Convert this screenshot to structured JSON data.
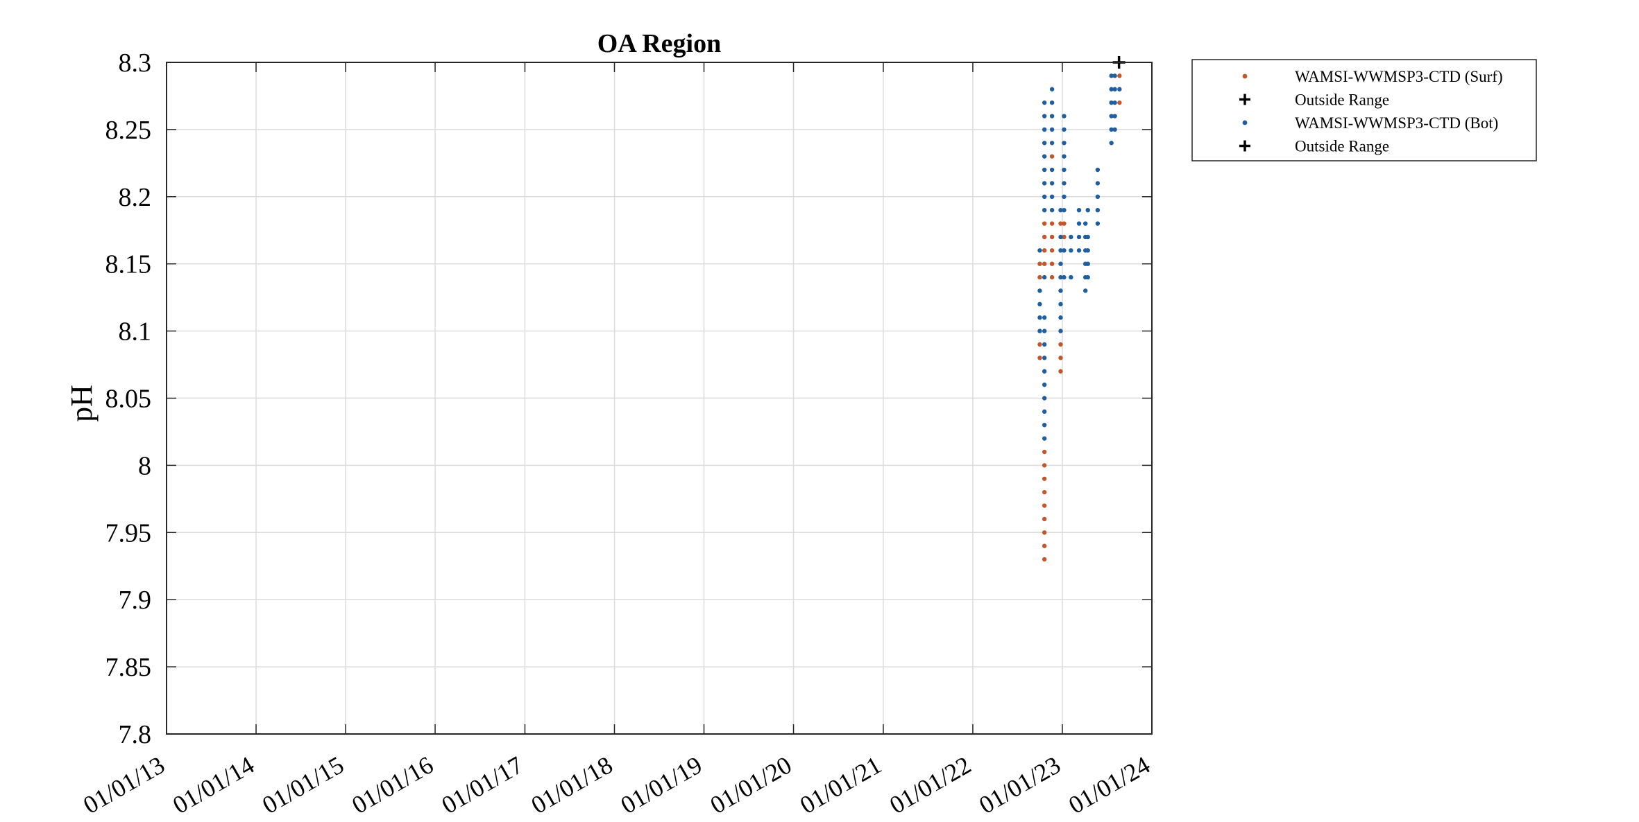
{
  "chart_data": {
    "type": "scatter",
    "title": "OA Region",
    "xlabel": "",
    "ylabel": "pH",
    "x_tick_labels": [
      "01/01/13",
      "01/01/14",
      "01/01/15",
      "01/01/16",
      "01/01/17",
      "01/01/18",
      "01/01/19",
      "01/01/20",
      "01/01/21",
      "01/01/22",
      "01/01/23",
      "01/01/24"
    ],
    "x_ticks": [
      "2013-01-01",
      "2014-01-01",
      "2015-01-01",
      "2016-01-01",
      "2017-01-01",
      "2018-01-01",
      "2019-01-01",
      "2020-01-01",
      "2021-01-01",
      "2022-01-01",
      "2023-01-01",
      "2024-01-01"
    ],
    "xlim": [
      "2013-01-01",
      "2024-01-01"
    ],
    "y_ticks": [
      7.8,
      7.85,
      7.9,
      7.95,
      8,
      8.05,
      8.1,
      8.15,
      8.2,
      8.25,
      8.3
    ],
    "y_tick_labels": [
      "7.8",
      "7.85",
      "7.9",
      "7.95",
      "8",
      "8.05",
      "8.1",
      "8.15",
      "8.2",
      "8.25",
      "8.3"
    ],
    "ylim": [
      7.8,
      8.3
    ],
    "grid": true,
    "legend_position": "outside-top-right",
    "legend": [
      {
        "label": "WAMSI-WWMSP3-CTD (Surf)",
        "marker": "dot",
        "color": "#c0582b"
      },
      {
        "label": "Outside Range",
        "marker": "plus",
        "color": "#000000"
      },
      {
        "label": "WAMSI-WWMSP3-CTD (Bot)",
        "marker": "dot",
        "color": "#1f5fa0"
      },
      {
        "label": "Outside Range",
        "marker": "plus",
        "color": "#000000"
      }
    ],
    "series": [
      {
        "name": "WAMSI-WWMSP3-CTD (Surf)",
        "marker": "dot",
        "color": "#c0582b",
        "points": [
          {
            "x": "2022-10-01",
            "y": 8.08
          },
          {
            "x": "2022-10-01",
            "y": 8.09
          },
          {
            "x": "2022-10-01",
            "y": 8.14
          },
          {
            "x": "2022-10-01",
            "y": 8.15
          },
          {
            "x": "2022-10-20",
            "y": 7.93
          },
          {
            "x": "2022-10-20",
            "y": 7.94
          },
          {
            "x": "2022-10-20",
            "y": 7.95
          },
          {
            "x": "2022-10-20",
            "y": 7.96
          },
          {
            "x": "2022-10-20",
            "y": 7.97
          },
          {
            "x": "2022-10-20",
            "y": 7.98
          },
          {
            "x": "2022-10-20",
            "y": 7.99
          },
          {
            "x": "2022-10-20",
            "y": 8.0
          },
          {
            "x": "2022-10-20",
            "y": 8.01
          },
          {
            "x": "2022-10-20",
            "y": 8.15
          },
          {
            "x": "2022-10-20",
            "y": 8.16
          },
          {
            "x": "2022-10-20",
            "y": 8.17
          },
          {
            "x": "2022-10-20",
            "y": 8.18
          },
          {
            "x": "2022-11-20",
            "y": 8.14
          },
          {
            "x": "2022-11-20",
            "y": 8.15
          },
          {
            "x": "2022-11-20",
            "y": 8.16
          },
          {
            "x": "2022-11-20",
            "y": 8.17
          },
          {
            "x": "2022-11-20",
            "y": 8.18
          },
          {
            "x": "2022-11-20",
            "y": 8.23
          },
          {
            "x": "2022-12-25",
            "y": 8.07
          },
          {
            "x": "2022-12-25",
            "y": 8.08
          },
          {
            "x": "2022-12-25",
            "y": 8.09
          },
          {
            "x": "2022-12-25",
            "y": 8.18
          },
          {
            "x": "2023-01-08",
            "y": 8.17
          },
          {
            "x": "2023-01-08",
            "y": 8.18
          },
          {
            "x": "2023-08-22",
            "y": 8.27
          },
          {
            "x": "2023-08-22",
            "y": 8.29
          }
        ]
      },
      {
        "name": "WAMSI-WWMSP3-CTD (Bot)",
        "marker": "dot",
        "color": "#1f5fa0",
        "points": [
          {
            "x": "2022-10-01",
            "y": 8.1
          },
          {
            "x": "2022-10-01",
            "y": 8.11
          },
          {
            "x": "2022-10-01",
            "y": 8.12
          },
          {
            "x": "2022-10-01",
            "y": 8.13
          },
          {
            "x": "2022-10-01",
            "y": 8.16
          },
          {
            "x": "2022-10-20",
            "y": 8.02
          },
          {
            "x": "2022-10-20",
            "y": 8.03
          },
          {
            "x": "2022-10-20",
            "y": 8.04
          },
          {
            "x": "2022-10-20",
            "y": 8.05
          },
          {
            "x": "2022-10-20",
            "y": 8.06
          },
          {
            "x": "2022-10-20",
            "y": 8.07
          },
          {
            "x": "2022-10-20",
            "y": 8.08
          },
          {
            "x": "2022-10-20",
            "y": 8.09
          },
          {
            "x": "2022-10-20",
            "y": 8.1
          },
          {
            "x": "2022-10-20",
            "y": 8.11
          },
          {
            "x": "2022-10-20",
            "y": 8.14
          },
          {
            "x": "2022-10-20",
            "y": 8.19
          },
          {
            "x": "2022-10-20",
            "y": 8.2
          },
          {
            "x": "2022-10-20",
            "y": 8.21
          },
          {
            "x": "2022-10-20",
            "y": 8.22
          },
          {
            "x": "2022-10-20",
            "y": 8.23
          },
          {
            "x": "2022-10-20",
            "y": 8.24
          },
          {
            "x": "2022-10-20",
            "y": 8.25
          },
          {
            "x": "2022-10-20",
            "y": 8.26
          },
          {
            "x": "2022-10-20",
            "y": 8.27
          },
          {
            "x": "2022-11-20",
            "y": 8.19
          },
          {
            "x": "2022-11-20",
            "y": 8.2
          },
          {
            "x": "2022-11-20",
            "y": 8.21
          },
          {
            "x": "2022-11-20",
            "y": 8.22
          },
          {
            "x": "2022-11-20",
            "y": 8.24
          },
          {
            "x": "2022-11-20",
            "y": 8.25
          },
          {
            "x": "2022-11-20",
            "y": 8.26
          },
          {
            "x": "2022-11-20",
            "y": 8.27
          },
          {
            "x": "2022-11-20",
            "y": 8.28
          },
          {
            "x": "2022-12-25",
            "y": 8.1
          },
          {
            "x": "2022-12-25",
            "y": 8.11
          },
          {
            "x": "2022-12-25",
            "y": 8.12
          },
          {
            "x": "2022-12-25",
            "y": 8.13
          },
          {
            "x": "2022-12-25",
            "y": 8.14
          },
          {
            "x": "2022-12-25",
            "y": 8.15
          },
          {
            "x": "2022-12-25",
            "y": 8.16
          },
          {
            "x": "2022-12-25",
            "y": 8.17
          },
          {
            "x": "2022-12-25",
            "y": 8.19
          },
          {
            "x": "2023-01-08",
            "y": 8.14
          },
          {
            "x": "2023-01-08",
            "y": 8.16
          },
          {
            "x": "2023-01-08",
            "y": 8.19
          },
          {
            "x": "2023-01-08",
            "y": 8.2
          },
          {
            "x": "2023-01-08",
            "y": 8.21
          },
          {
            "x": "2023-01-08",
            "y": 8.22
          },
          {
            "x": "2023-01-08",
            "y": 8.23
          },
          {
            "x": "2023-01-08",
            "y": 8.24
          },
          {
            "x": "2023-01-08",
            "y": 8.25
          },
          {
            "x": "2023-01-08",
            "y": 8.26
          },
          {
            "x": "2023-02-05",
            "y": 8.14
          },
          {
            "x": "2023-02-05",
            "y": 8.16
          },
          {
            "x": "2023-02-05",
            "y": 8.17
          },
          {
            "x": "2023-03-10",
            "y": 8.16
          },
          {
            "x": "2023-03-10",
            "y": 8.17
          },
          {
            "x": "2023-03-10",
            "y": 8.18
          },
          {
            "x": "2023-03-10",
            "y": 8.19
          },
          {
            "x": "2023-04-05",
            "y": 8.13
          },
          {
            "x": "2023-04-05",
            "y": 8.14
          },
          {
            "x": "2023-04-05",
            "y": 8.15
          },
          {
            "x": "2023-04-05",
            "y": 8.16
          },
          {
            "x": "2023-04-05",
            "y": 8.17
          },
          {
            "x": "2023-04-05",
            "y": 8.18
          },
          {
            "x": "2023-04-15",
            "y": 8.14
          },
          {
            "x": "2023-04-15",
            "y": 8.15
          },
          {
            "x": "2023-04-15",
            "y": 8.16
          },
          {
            "x": "2023-04-15",
            "y": 8.17
          },
          {
            "x": "2023-04-15",
            "y": 8.19
          },
          {
            "x": "2023-05-25",
            "y": 8.18
          },
          {
            "x": "2023-05-25",
            "y": 8.19
          },
          {
            "x": "2023-05-25",
            "y": 8.2
          },
          {
            "x": "2023-05-25",
            "y": 8.21
          },
          {
            "x": "2023-05-25",
            "y": 8.22
          },
          {
            "x": "2023-07-20",
            "y": 8.24
          },
          {
            "x": "2023-07-20",
            "y": 8.25
          },
          {
            "x": "2023-07-20",
            "y": 8.26
          },
          {
            "x": "2023-07-20",
            "y": 8.27
          },
          {
            "x": "2023-07-20",
            "y": 8.28
          },
          {
            "x": "2023-07-20",
            "y": 8.29
          },
          {
            "x": "2023-08-03",
            "y": 8.25
          },
          {
            "x": "2023-08-03",
            "y": 8.26
          },
          {
            "x": "2023-08-03",
            "y": 8.27
          },
          {
            "x": "2023-08-03",
            "y": 8.28
          },
          {
            "x": "2023-08-03",
            "y": 8.29
          },
          {
            "x": "2023-08-22",
            "y": 8.28
          }
        ]
      },
      {
        "name": "Outside Range",
        "marker": "plus",
        "color": "#000000",
        "points": [
          {
            "x": "2023-08-20",
            "y": 8.3
          }
        ]
      }
    ]
  }
}
